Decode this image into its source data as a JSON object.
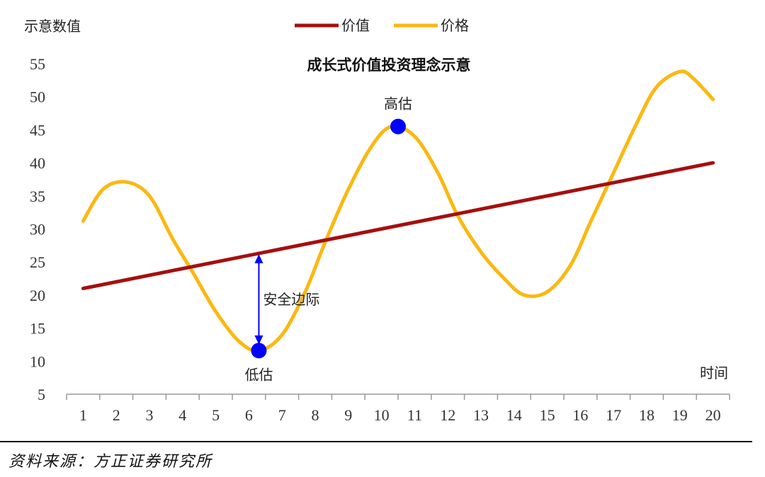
{
  "chart_data": {
    "type": "line",
    "title": "成长式价值投资理念示意",
    "ylabel": "示意数值",
    "xlabel": "时间",
    "x": [
      1,
      2,
      3,
      4,
      5,
      6,
      7,
      8,
      9,
      10,
      11,
      12,
      13,
      14,
      15,
      16,
      17,
      18,
      19,
      20
    ],
    "ylim": [
      5,
      55
    ],
    "yticks": [
      5,
      10,
      15,
      20,
      25,
      30,
      35,
      40,
      45,
      50,
      55
    ],
    "legend_position": "top-center",
    "series": [
      {
        "name": "价值",
        "color": "#A50F0F",
        "points": [
          [
            1,
            21
          ],
          [
            20,
            40
          ]
        ]
      },
      {
        "name": "价格",
        "color": "#FBB812",
        "smooth": true,
        "points": [
          [
            1,
            31.2
          ],
          [
            1.6,
            36
          ],
          [
            2.3,
            37.1
          ],
          [
            3,
            35
          ],
          [
            3.7,
            28.5
          ],
          [
            4.3,
            23.5
          ],
          [
            5,
            17.5
          ],
          [
            5.7,
            13
          ],
          [
            6.3,
            11.6
          ],
          [
            7,
            14
          ],
          [
            7.7,
            20.5
          ],
          [
            8.3,
            28
          ],
          [
            9,
            36
          ],
          [
            9.7,
            42.5
          ],
          [
            10.3,
            45.5
          ],
          [
            11,
            44
          ],
          [
            11.7,
            38.5
          ],
          [
            12.3,
            32
          ],
          [
            13,
            26.5
          ],
          [
            13.7,
            22.5
          ],
          [
            14.3,
            20
          ],
          [
            15,
            20.5
          ],
          [
            15.7,
            24.5
          ],
          [
            16.3,
            31
          ],
          [
            17,
            38.5
          ],
          [
            17.7,
            46
          ],
          [
            18.3,
            51.5
          ],
          [
            19,
            53.8
          ],
          [
            19.4,
            52.8
          ],
          [
            20,
            49.6
          ]
        ]
      }
    ],
    "annotations": [
      {
        "text": "高估",
        "x": 10.5,
        "y": 45.5,
        "marker": true,
        "marker_color": "#0000FF",
        "label_side": "above"
      },
      {
        "text": "低估",
        "x": 6.3,
        "y": 11.6,
        "marker": true,
        "marker_color": "#0000FF",
        "label_side": "below"
      },
      {
        "text": "安全边际",
        "arrow_x": 6.3,
        "from_y": 26.2,
        "to_y": 12.5,
        "arrow_color": "#0000FF"
      }
    ],
    "grid": false
  },
  "source_text": "资料来源：方正证券研究所"
}
